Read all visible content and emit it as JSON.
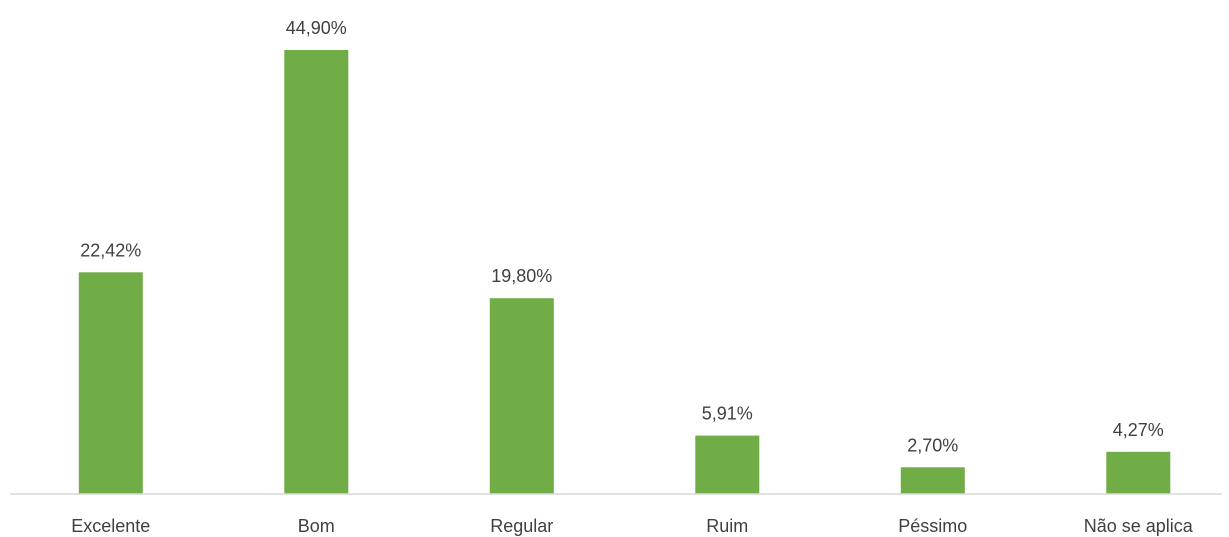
{
  "chart_data": {
    "type": "bar",
    "categories": [
      "Excelente",
      "Bom",
      "Regular",
      "Ruim",
      "Péssimo",
      "Não se aplica"
    ],
    "values": [
      22.42,
      44.9,
      19.8,
      5.91,
      2.7,
      4.27
    ],
    "data_labels": [
      "22,42%",
      "44,90%",
      "19,80%",
      "5,91%",
      "2,70%",
      "4,27%"
    ],
    "ylim": [
      0,
      44.9
    ],
    "grid": false,
    "legend": "none",
    "colors": {
      "bar": "#70AD47",
      "axis": "#D9D9D9",
      "text": "#404040"
    }
  }
}
